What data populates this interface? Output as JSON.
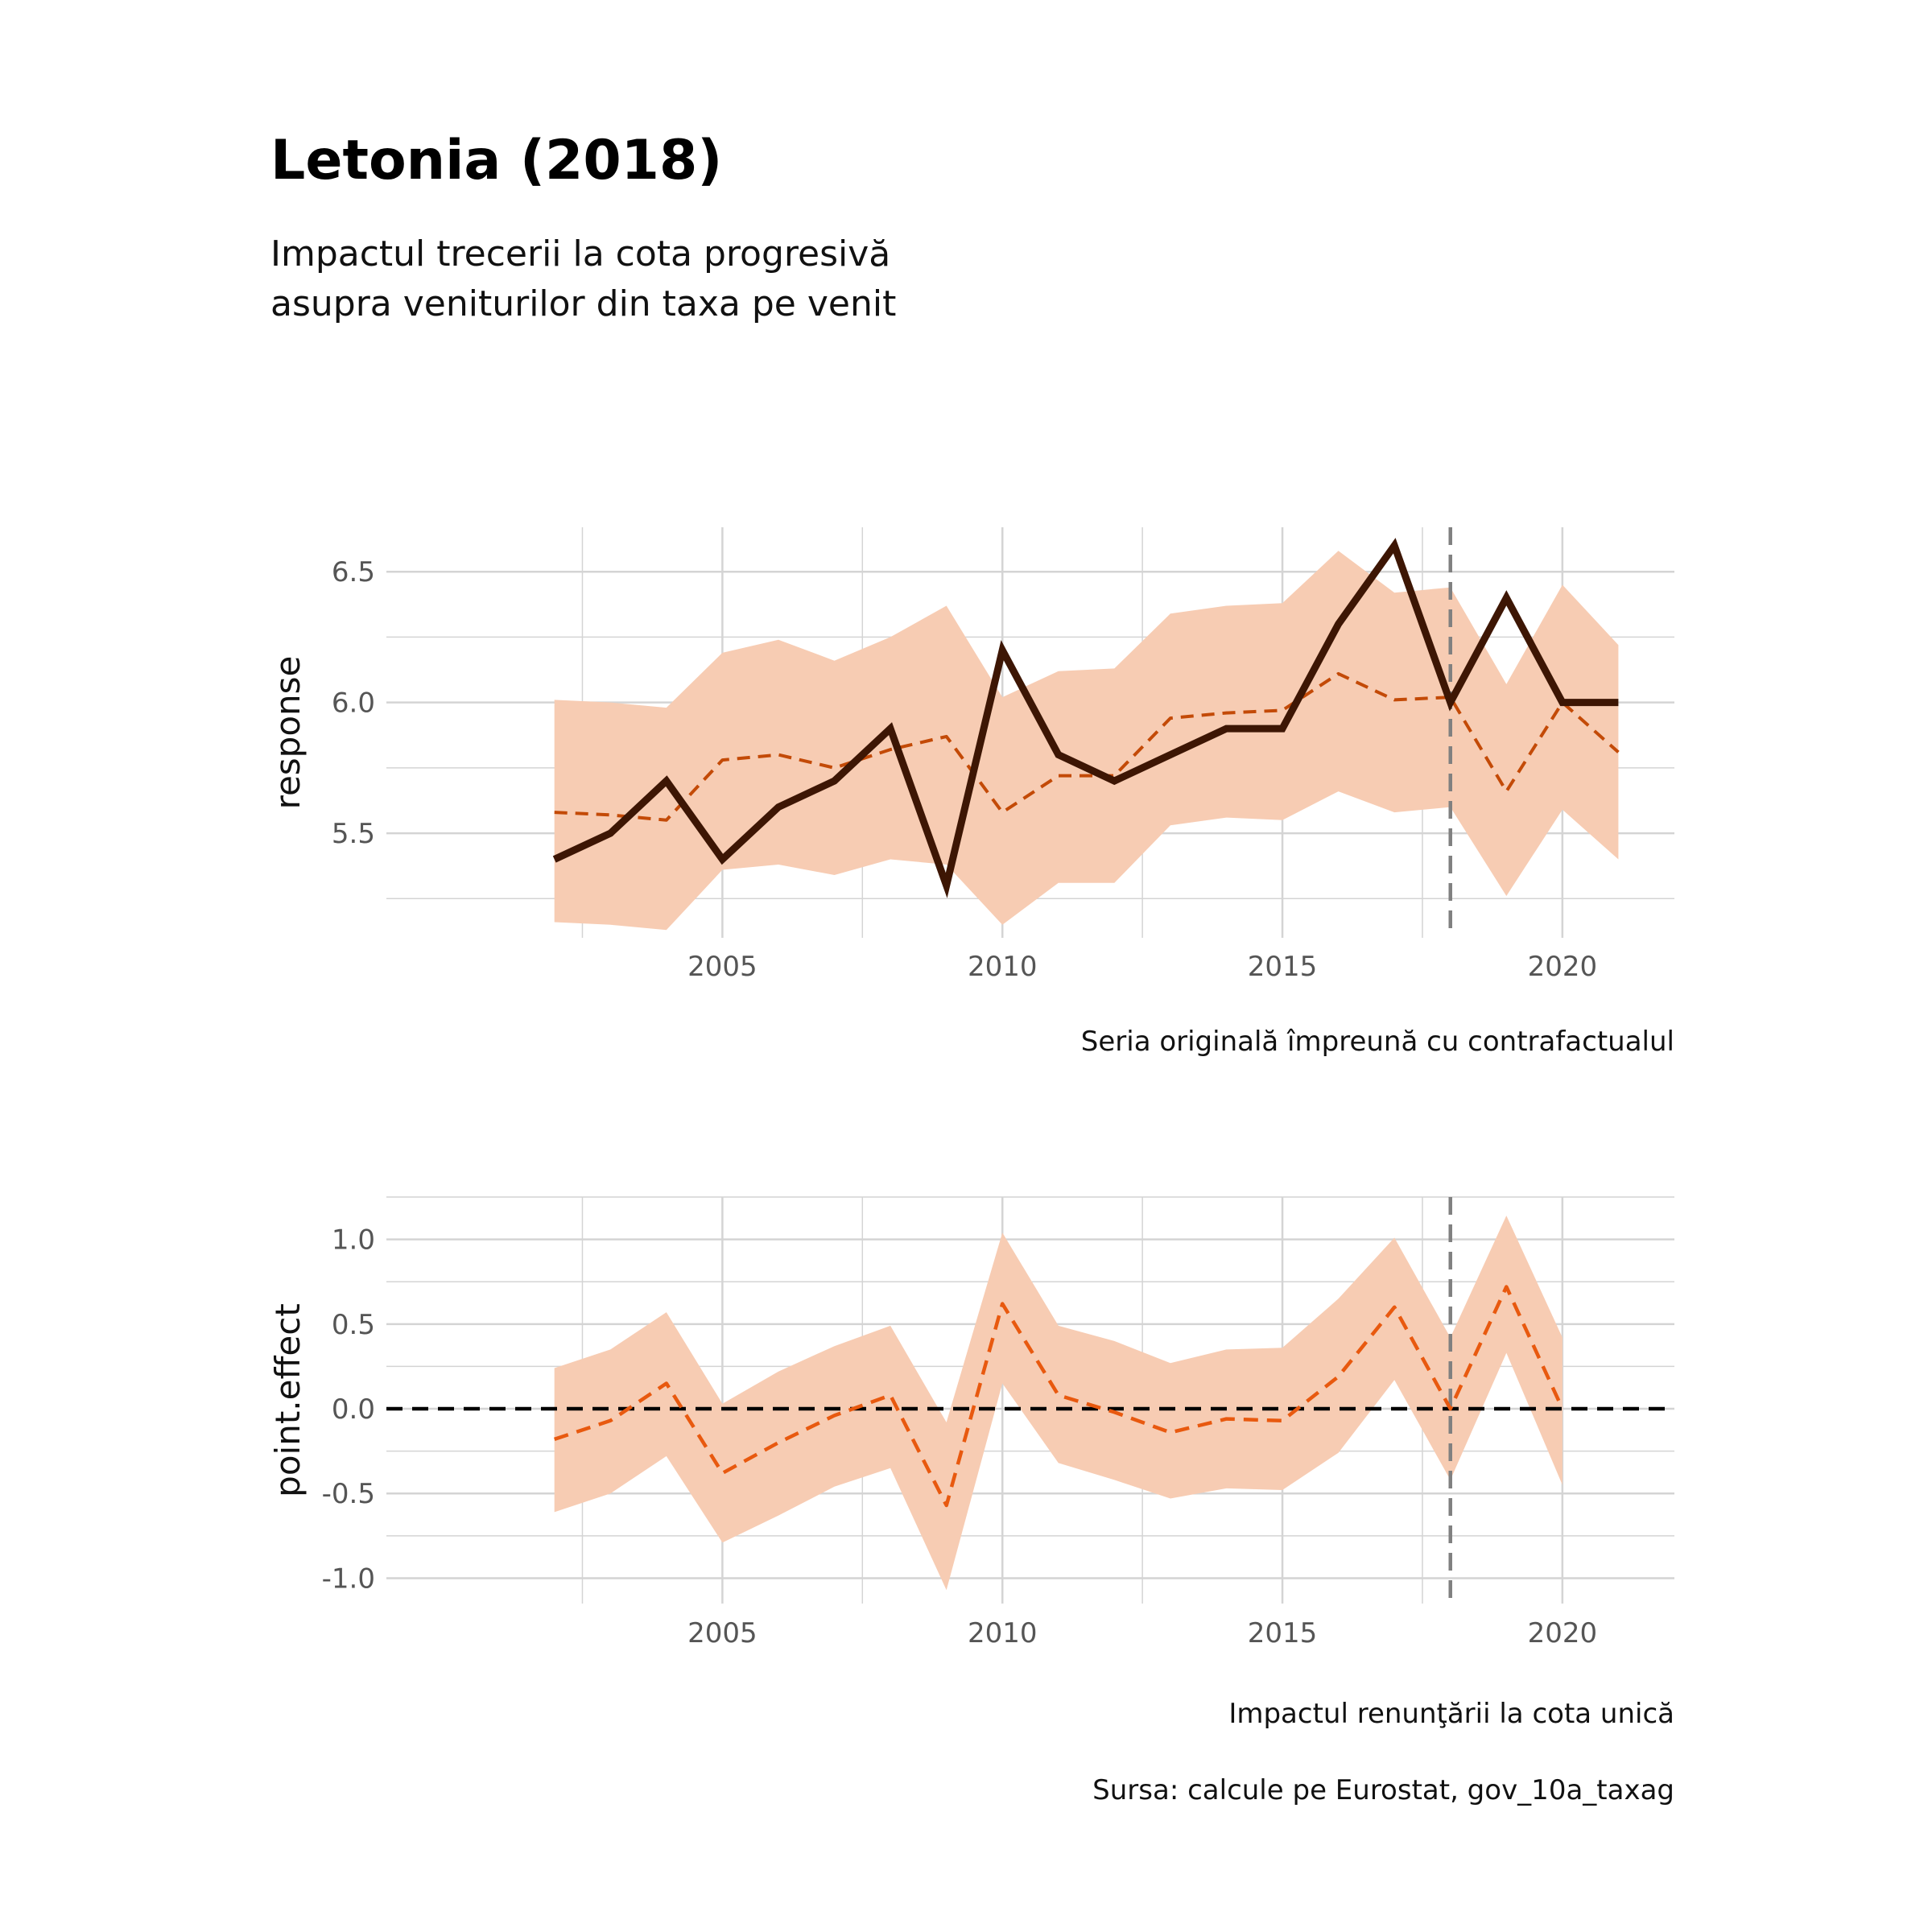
{
  "title": "Letonia (2018)",
  "subtitle_lines": [
    "Impactul trecerii la cota progresivă",
    "asupra veniturilor din taxa pe venit"
  ],
  "source": "Sursa: calcule pe Eurostat, gov_10a_taxag",
  "colors": {
    "band": "#f7ccb3",
    "observed": "#3d1604",
    "counterfactual_top": "#c34a07",
    "effect_bottom": "#e8590f",
    "grid": "#d4d4d4",
    "intervention": "#808080",
    "zero_line": "#000000"
  },
  "chart_data": [
    {
      "type": "line",
      "ylabel": "response",
      "caption": "Seria originală împreună cu contrafactualul",
      "xlim": [
        1999.0,
        2022.0
      ],
      "ylim": [
        5.1,
        6.67
      ],
      "x_ticks": [
        2005,
        2010,
        2015,
        2020
      ],
      "y_ticks": [
        5.5,
        6.0,
        6.5
      ],
      "y_tick_labels": [
        "5.5",
        "6.0",
        "6.5"
      ],
      "intervention_x": 2018,
      "x": [
        2002,
        2003,
        2004,
        2005,
        2006,
        2007,
        2008,
        2009,
        2010,
        2011,
        2012,
        2013,
        2014,
        2015,
        2016,
        2017,
        2018,
        2019,
        2020,
        2021
      ],
      "series": [
        {
          "role": "observed",
          "style": "solid",
          "values": [
            5.4,
            5.5,
            5.7,
            5.4,
            5.6,
            5.7,
            5.9,
            5.3,
            6.2,
            5.8,
            5.7,
            5.8,
            5.9,
            5.9,
            6.3,
            6.6,
            6.0,
            6.4,
            6.0,
            6.0
          ]
        },
        {
          "role": "counterfactual",
          "style": "dashed",
          "values": [
            5.58,
            5.57,
            5.55,
            5.78,
            5.8,
            5.75,
            5.82,
            5.87,
            5.58,
            5.72,
            5.72,
            5.94,
            5.96,
            5.97,
            6.11,
            6.01,
            6.02,
            5.66,
            6.0,
            5.81
          ]
        },
        {
          "role": "interval",
          "style": "band",
          "lower": [
            5.16,
            5.15,
            5.13,
            5.36,
            5.38,
            5.34,
            5.4,
            5.38,
            5.15,
            5.31,
            5.31,
            5.53,
            5.56,
            5.55,
            5.66,
            5.58,
            5.6,
            5.26,
            5.59,
            5.4
          ],
          "upper": [
            6.01,
            6.0,
            5.98,
            6.19,
            6.24,
            6.16,
            6.25,
            6.37,
            6.02,
            6.12,
            6.13,
            6.34,
            6.37,
            6.38,
            6.58,
            6.42,
            6.44,
            6.07,
            6.45,
            6.22
          ]
        }
      ]
    },
    {
      "type": "line",
      "ylabel": "point.effect",
      "caption": "Impactul renunţării la cota unică",
      "xlim": [
        1999.0,
        2022.0
      ],
      "ylim": [
        -1.15,
        1.25
      ],
      "x_ticks": [
        2005,
        2010,
        2015,
        2020
      ],
      "y_ticks": [
        -1.0,
        -0.5,
        0.0,
        0.5,
        1.0
      ],
      "y_tick_labels": [
        "-1.0",
        "-0.5",
        "0.0",
        "0.5",
        "1.0"
      ],
      "intervention_x": 2018,
      "reference_y": 0,
      "x": [
        2002,
        2003,
        2004,
        2005,
        2006,
        2007,
        2008,
        2009,
        2010,
        2011,
        2012,
        2013,
        2014,
        2015,
        2016,
        2017,
        2018,
        2019,
        2020
      ],
      "series": [
        {
          "role": "point_effect",
          "style": "dashed",
          "values": [
            -0.18,
            -0.07,
            0.15,
            -0.38,
            -0.2,
            -0.04,
            0.08,
            -0.57,
            0.62,
            0.08,
            -0.02,
            -0.14,
            -0.06,
            -0.07,
            0.19,
            0.6,
            0.0,
            0.72,
            0.0
          ]
        },
        {
          "role": "interval",
          "style": "band",
          "lower": [
            -0.61,
            -0.5,
            -0.28,
            -0.79,
            -0.63,
            -0.46,
            -0.35,
            -1.07,
            0.15,
            -0.32,
            -0.42,
            -0.53,
            -0.47,
            -0.48,
            -0.26,
            0.17,
            -0.42,
            0.33,
            -0.45
          ],
          "upper": [
            0.24,
            0.35,
            0.57,
            0.03,
            0.22,
            0.37,
            0.49,
            -0.08,
            1.04,
            0.49,
            0.4,
            0.27,
            0.35,
            0.36,
            0.65,
            1.01,
            0.42,
            1.14,
            0.42
          ]
        }
      ]
    }
  ]
}
